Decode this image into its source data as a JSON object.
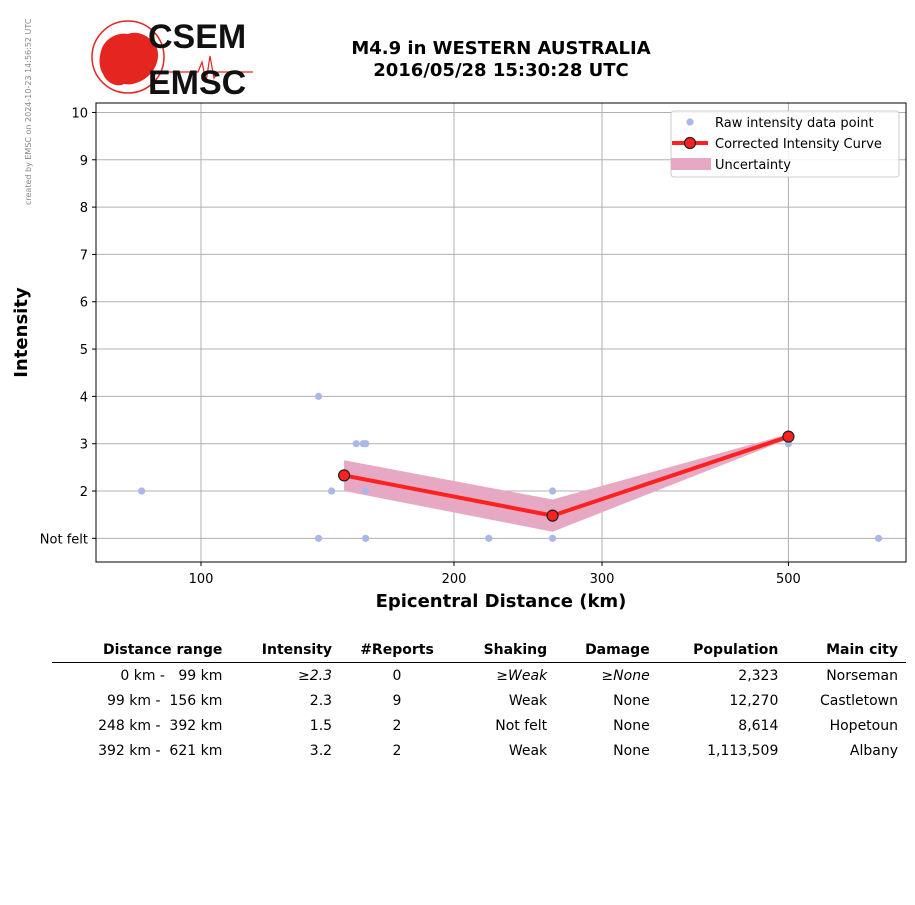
{
  "watermark": "created by EMSC on 2024-10-23 14:56:52 UTC",
  "logo": {
    "line1": "CSEM",
    "line2": "EMSC",
    "color": "#e52620"
  },
  "header": {
    "title_line1": "M4.9 in WESTERN AUSTRALIA",
    "title_line2": "2016/05/28 15:30:28 UTC"
  },
  "chart_data": {
    "type": "scatter",
    "xlabel": "Epicentral Distance (km)",
    "ylabel": "Intensity",
    "x_scale": "log",
    "xlim": [
      75,
      690
    ],
    "ylim": [
      0.5,
      10.2
    ],
    "x_ticks": [
      100,
      200,
      300,
      500
    ],
    "x_tick_labels": [
      "100",
      "200",
      "300",
      "500"
    ],
    "y_ticks": [
      1,
      2,
      3,
      4,
      5,
      6,
      7,
      8,
      9,
      10
    ],
    "y_tick_labels": [
      "Not felt",
      "2",
      "3",
      "4",
      "5",
      "6",
      "7",
      "8",
      "9",
      "10"
    ],
    "grid": true,
    "legend_position": "top-right",
    "legend": [
      "Raw intensity data point",
      "Corrected Intensity Curve",
      "Uncertainty"
    ],
    "colors": {
      "raw": "#aab8e8",
      "curve": "#ff2020",
      "marker_fill": "#ff2020",
      "band": "#e7a8c3"
    },
    "raw_points": [
      {
        "x": 85,
        "y": 2
      },
      {
        "x": 138,
        "y": 4
      },
      {
        "x": 138,
        "y": 1
      },
      {
        "x": 143,
        "y": 2
      },
      {
        "x": 153,
        "y": 3
      },
      {
        "x": 156,
        "y": 3
      },
      {
        "x": 157,
        "y": 3
      },
      {
        "x": 157,
        "y": 2
      },
      {
        "x": 157,
        "y": 1
      },
      {
        "x": 220,
        "y": 1
      },
      {
        "x": 262,
        "y": 2
      },
      {
        "x": 262,
        "y": 1
      },
      {
        "x": 500,
        "y": 3
      },
      {
        "x": 640,
        "y": 1
      }
    ],
    "curve": [
      {
        "x": 148,
        "y": 2.33
      },
      {
        "x": 262,
        "y": 1.48
      },
      {
        "x": 500,
        "y": 3.15
      }
    ],
    "uncertainty": {
      "x": [
        148,
        262,
        500
      ],
      "upper": [
        2.65,
        1.82,
        3.2
      ],
      "lower": [
        2.0,
        1.14,
        3.1
      ]
    }
  },
  "table": {
    "headers": [
      "Distance range",
      "Intensity",
      "#Reports",
      "Shaking",
      "Damage",
      "Population",
      "Main city"
    ],
    "rows": [
      [
        "0 km -   99 km",
        "≥2.3",
        "0",
        "≥Weak",
        "≥None",
        "2,323",
        "Norseman"
      ],
      [
        "99 km -  156 km",
        "2.3",
        "9",
        "Weak",
        "None",
        "12,270",
        "Castletown"
      ],
      [
        "248 km -  392 km",
        "1.5",
        "2",
        "Not felt",
        "None",
        "8,614",
        "Hopetoun"
      ],
      [
        "392 km -  621 km",
        "3.2",
        "2",
        "Weak",
        "None",
        "1,113,509",
        "Albany"
      ]
    ]
  }
}
